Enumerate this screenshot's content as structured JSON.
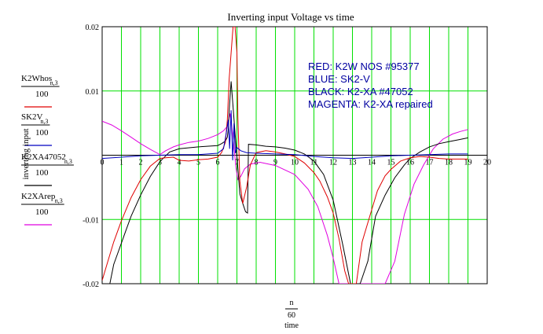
{
  "chart_data": {
    "type": "line",
    "title": "Inverting input Voltage vs time",
    "ylabel": "inverting input",
    "xlabel": {
      "numerator": "n",
      "denominator": "60",
      "unit": "time"
    },
    "xlim": [
      0,
      20
    ],
    "ylim": [
      -0.02,
      0.02
    ],
    "x_ticks": [
      "0",
      "1",
      "2",
      "3",
      "4",
      "5",
      "6",
      "7",
      "8",
      "9",
      "10",
      "11",
      "12",
      "13",
      "14",
      "15",
      "16",
      "17",
      "18",
      "19",
      "20"
    ],
    "y_ticks": [
      "0.02",
      "0.01",
      "-0.01",
      "-0.02"
    ],
    "grid": true,
    "grid_color": "#00e000",
    "legend_position": "left",
    "annotations": [
      "RED: K2W NOS #95377",
      "BLUE: SK2-V",
      "BLACK: K2-XA #47052",
      "MAGENTA: K2-XA repaired"
    ],
    "annotation_color": "#0000a0",
    "series": [
      {
        "legend_main": "K2Whos",
        "legend_sub": "n,3",
        "legend_den": "100",
        "color": "#e00000",
        "x": [
          0,
          0.3,
          0.6,
          1,
          1.5,
          2,
          2.5,
          3,
          3.3,
          3.7,
          4,
          4.5,
          5,
          5.5,
          6,
          6.2,
          6.4,
          6.5,
          6.6,
          6.8,
          6.9,
          7,
          7.05,
          7.15,
          7.3,
          7.5,
          7.7,
          8,
          8.5,
          9,
          9.5,
          10,
          10.5,
          11,
          11.3,
          11.7,
          12,
          12.3,
          12.6,
          12.8,
          13,
          13.2,
          13.5,
          14,
          14.3,
          14.7,
          15,
          15.5,
          16,
          16.5,
          17,
          17.5,
          18,
          18.5,
          19
        ],
        "y": [
          -0.0195,
          -0.0165,
          -0.0135,
          -0.0102,
          -0.0066,
          -0.0038,
          -0.0017,
          -0.0005,
          -0.0004,
          -0.0003,
          -0.0008,
          -0.0009,
          -0.0007,
          -0.0006,
          -0.0003,
          0.0004,
          0.002,
          0.0055,
          0.012,
          0.02,
          0.02,
          0.016,
          0.006,
          -0.004,
          -0.0075,
          -0.005,
          -0.0015,
          0.0004,
          0.0007,
          0.0005,
          0.0002,
          -0.0002,
          -0.0012,
          -0.0027,
          -0.004,
          -0.0065,
          -0.009,
          -0.013,
          -0.018,
          -0.02,
          -0.02,
          -0.02,
          -0.0135,
          -0.0085,
          -0.0055,
          -0.0032,
          -0.0022,
          -0.0009,
          -0.0004,
          -0.0002,
          -0.0003,
          -0.0005,
          -0.0006,
          -0.0006,
          -0.0006
        ]
      },
      {
        "legend_main": "SK2V",
        "legend_sub": "n,3",
        "legend_den": "100",
        "color": "#0000c0",
        "x": [
          0,
          1,
          2,
          3,
          4,
          5,
          6,
          6.3,
          6.45,
          6.55,
          6.62,
          6.7,
          6.78,
          6.85,
          6.92,
          7,
          7.2,
          7.5,
          8,
          9,
          10,
          11,
          12,
          13,
          14,
          15,
          16,
          17,
          18,
          19
        ],
        "y": [
          -0.0005,
          -0.0003,
          -0.0001,
          0,
          0.0001,
          0.0001,
          0.0003,
          0.001,
          0.0035,
          0.0055,
          0.001,
          0.007,
          -0.0008,
          0.005,
          0.0003,
          0.0012,
          0.0007,
          0.0004,
          0.0003,
          0.0002,
          0.0001,
          -0.0002,
          -0.0004,
          -0.0005,
          -0.0003,
          -0.0001,
          0,
          0.0001,
          0.0002,
          0.0002
        ]
      },
      {
        "legend_main": "K2XA47052",
        "legend_sub": "n,3",
        "legend_den": "100",
        "color": "#000000",
        "x": [
          0,
          0.4,
          0.6,
          0.9,
          1.2,
          1.5,
          2,
          2.5,
          3,
          3.5,
          4,
          5,
          6,
          6.2,
          6.4,
          6.5,
          6.55,
          6.6,
          6.7,
          6.8,
          6.9,
          7.05,
          7.15,
          7.3,
          7.45,
          7.55,
          7.6,
          8,
          8.5,
          9,
          9.5,
          10,
          10.5,
          11,
          11.5,
          12,
          12.5,
          12.9,
          13.4,
          13.8,
          14.2,
          14.7,
          15.2,
          15.7,
          16,
          16.5,
          17,
          17.5,
          18,
          18.5,
          19
        ],
        "y": [
          -0.022,
          -0.02,
          -0.017,
          -0.0145,
          -0.012,
          -0.0095,
          -0.0062,
          -0.0033,
          -0.001,
          0.0005,
          0.001,
          0.0013,
          0.0015,
          0.0018,
          0.0022,
          0.0028,
          0.004,
          0.007,
          0.0115,
          0.0075,
          0.0035,
          -0.002,
          -0.006,
          -0.0075,
          -0.0088,
          -0.009,
          0.0017,
          0.0016,
          0.0014,
          0.0013,
          0.0011,
          0.0008,
          0.0002,
          -0.0009,
          -0.003,
          -0.007,
          -0.014,
          -0.02,
          -0.02,
          -0.0165,
          -0.0095,
          -0.0062,
          -0.0035,
          -0.0015,
          -0.0005,
          0.0005,
          0.0013,
          0.0018,
          0.0021,
          0.0024,
          0.0027
        ]
      },
      {
        "legend_main": "K2XArep",
        "legend_sub": "n,3",
        "legend_den": "100",
        "color": "#e000e0",
        "x": [
          0,
          0.5,
          1,
          1.5,
          2,
          2.5,
          3,
          3.3,
          3.7,
          4,
          4.5,
          5,
          5.5,
          6,
          6.3,
          6.5,
          6.65,
          6.8,
          6.95,
          7.05,
          7.2,
          7.4,
          7.7,
          8.2,
          9,
          10,
          10.7,
          11.2,
          11.7,
          12,
          12.3,
          12.6,
          13,
          13.4,
          13.8,
          14.2,
          14.7,
          15.2,
          15.7,
          16.2,
          16.7,
          17.2,
          17.7,
          18.2,
          18.6,
          19
        ],
        "y": [
          0.0053,
          0.0047,
          0.0038,
          0.0028,
          0.0018,
          0.0009,
          0.0001,
          0.0007,
          0.0013,
          0.0016,
          0.002,
          0.0022,
          0.0026,
          0.0032,
          0.0038,
          0.0045,
          0.0065,
          0.0028,
          -0.002,
          -0.0038,
          -0.0033,
          -0.0021,
          -0.0014,
          -0.0011,
          -0.0016,
          -0.003,
          -0.0053,
          -0.008,
          -0.0125,
          -0.016,
          -0.02,
          -0.02,
          -0.02,
          -0.02,
          -0.02,
          -0.02,
          -0.02,
          -0.0165,
          -0.0092,
          -0.0045,
          -0.0015,
          0.001,
          0.0025,
          0.0033,
          0.0037,
          0.004
        ]
      }
    ]
  }
}
